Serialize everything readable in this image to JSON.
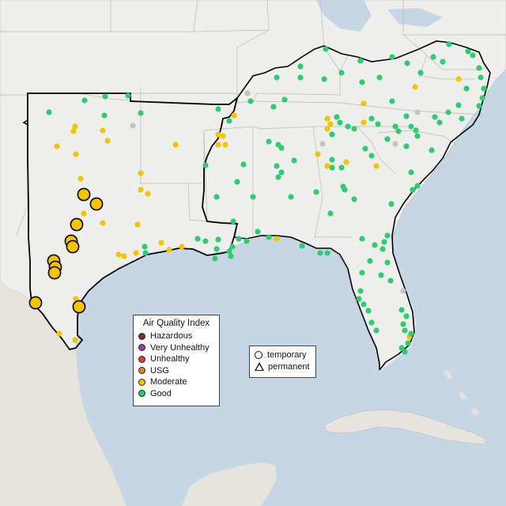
{
  "legend_aqi": {
    "title": "Air Quality Index",
    "items": [
      {
        "label": "Hazardous",
        "color": "#7e2d2d"
      },
      {
        "label": "Very Unhealthy",
        "color": "#8e44ad"
      },
      {
        "label": "Unhealthy",
        "color": "#e53b2c"
      },
      {
        "label": "USG",
        "color": "#e67e22"
      },
      {
        "label": "Moderate",
        "color": "#f2c500"
      },
      {
        "label": "Good",
        "color": "#2ecc71"
      }
    ]
  },
  "legend_shape": {
    "temporary": "temporary",
    "permanent": "permanent"
  },
  "colors": {
    "water": "#c6d6e4",
    "land": "#eeeeec",
    "no_data_marker": "#c3c3c3",
    "outline": "#000000"
  }
}
